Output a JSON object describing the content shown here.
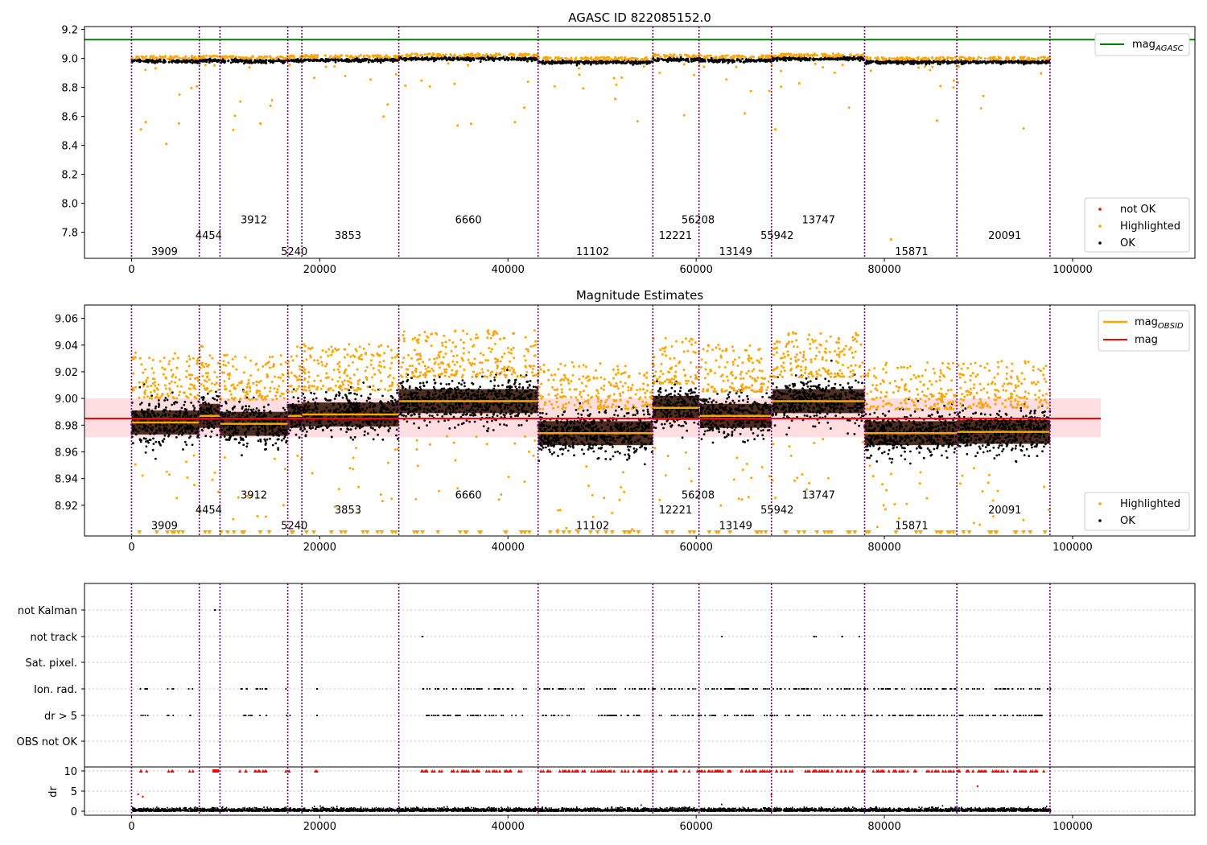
{
  "chart_data": [
    {
      "type": "scatter",
      "title": "AGASC ID 822085152.0",
      "xlim": [
        -5000,
        113000
      ],
      "ylim": [
        7.62,
        9.22
      ],
      "xticks": [
        0,
        20000,
        40000,
        60000,
        80000,
        100000
      ],
      "xtick_labels": [
        "0",
        "20000",
        "40000",
        "60000",
        "80000",
        "100000"
      ],
      "yticks": [
        7.8,
        8.0,
        8.2,
        8.4,
        8.6,
        8.8,
        9.0,
        9.2
      ],
      "ytick_labels": [
        "7.8",
        "8.0",
        "8.2",
        "8.4",
        "8.6",
        "8.8",
        "9.0",
        "9.2"
      ],
      "mag_agasc": 9.13,
      "legend_line": [
        {
          "label": "mag",
          "sub": "AGASC",
          "color": "#008000"
        }
      ],
      "legend_points": [
        {
          "label": "not OK",
          "color": "#ff0000"
        },
        {
          "label": "Highlighted",
          "color": "#ffa500"
        },
        {
          "label": "OK",
          "color": "#000000"
        }
      ],
      "obsid_labels": [
        {
          "text": "3909",
          "x": 3500,
          "y": 7.67
        },
        {
          "text": "4454",
          "x": 8200,
          "y": 7.78
        },
        {
          "text": "3912",
          "x": 13000,
          "y": 7.89
        },
        {
          "text": "5240",
          "x": 17300,
          "y": 7.67
        },
        {
          "text": "3853",
          "x": 23000,
          "y": 7.78
        },
        {
          "text": "6660",
          "x": 35800,
          "y": 7.89
        },
        {
          "text": "11102",
          "x": 49000,
          "y": 7.67
        },
        {
          "text": "12221",
          "x": 57800,
          "y": 7.78
        },
        {
          "text": "56208",
          "x": 60200,
          "y": 7.89
        },
        {
          "text": "13149",
          "x": 64200,
          "y": 7.67
        },
        {
          "text": "55942",
          "x": 68600,
          "y": 7.78
        },
        {
          "text": "13747",
          "x": 73000,
          "y": 7.89
        },
        {
          "text": "15871",
          "x": 82900,
          "y": 7.67
        },
        {
          "text": "20091",
          "x": 92800,
          "y": 7.78
        }
      ]
    },
    {
      "type": "scatter",
      "title": "Magnitude Estimates",
      "xlim": [
        -5000,
        113000
      ],
      "ylim": [
        8.897,
        9.07
      ],
      "xticks": [
        0,
        20000,
        40000,
        60000,
        80000,
        100000
      ],
      "xtick_labels": [
        "0",
        "20000",
        "40000",
        "60000",
        "80000",
        "100000"
      ],
      "yticks": [
        8.92,
        8.94,
        8.96,
        8.98,
        9.0,
        9.02,
        9.04,
        9.06
      ],
      "ytick_labels": [
        "8.92",
        "8.94",
        "8.96",
        "8.98",
        "9.00",
        "9.02",
        "9.04",
        "9.06"
      ],
      "mag_mean": 8.985,
      "mag_band": [
        8.971,
        9.0
      ],
      "mag_band_x": [
        -5000,
        103000
      ],
      "legend_line": [
        {
          "label": "mag",
          "sub": "OBSID",
          "color": "#ffa500"
        },
        {
          "label": "mag",
          "sub": "",
          "color": "#ff0000"
        }
      ],
      "legend_points": [
        {
          "label": "Highlighted",
          "color": "#ffa500"
        },
        {
          "label": "OK",
          "color": "#000000"
        }
      ],
      "obsid_mags": [
        {
          "obsid": "3909",
          "x0": 0,
          "x1": 7200,
          "mag": 8.982
        },
        {
          "obsid": "4454",
          "x0": 7200,
          "x1": 9400,
          "mag": 8.987
        },
        {
          "obsid": "3912",
          "x0": 9400,
          "x1": 16600,
          "mag": 8.981
        },
        {
          "obsid": "5240",
          "x0": 16600,
          "x1": 18100,
          "mag": 8.987
        },
        {
          "obsid": "3853",
          "x0": 18100,
          "x1": 28400,
          "mag": 8.988
        },
        {
          "obsid": "6660",
          "x0": 28400,
          "x1": 43200,
          "mag": 8.998
        },
        {
          "obsid": "11102",
          "x0": 43200,
          "x1": 55400,
          "mag": 8.974
        },
        {
          "obsid": "12221",
          "x0": 55400,
          "x1": 60300,
          "mag": 8.993
        },
        {
          "obsid": "56208",
          "x0": 60300,
          "x1": 60400,
          "mag": 8.993
        },
        {
          "obsid": "13149",
          "x0": 60400,
          "x1": 68000,
          "mag": 8.987
        },
        {
          "obsid": "55942",
          "x0": 68000,
          "x1": 68100,
          "mag": 8.987
        },
        {
          "obsid": "13747",
          "x0": 68100,
          "x1": 77900,
          "mag": 8.998
        },
        {
          "obsid": "15871",
          "x0": 77900,
          "x1": 87700,
          "mag": 8.974
        },
        {
          "obsid": "20091",
          "x0": 87700,
          "x1": 97600,
          "mag": 8.975
        }
      ],
      "obsid_labels": [
        {
          "text": "3909",
          "x": 3500,
          "y": 8.905
        },
        {
          "text": "4454",
          "x": 8200,
          "y": 8.917
        },
        {
          "text": "3912",
          "x": 13000,
          "y": 8.928
        },
        {
          "text": "5240",
          "x": 17300,
          "y": 8.905
        },
        {
          "text": "3853",
          "x": 23000,
          "y": 8.917
        },
        {
          "text": "6660",
          "x": 35800,
          "y": 8.928
        },
        {
          "text": "11102",
          "x": 49000,
          "y": 8.905
        },
        {
          "text": "12221",
          "x": 57800,
          "y": 8.917
        },
        {
          "text": "56208",
          "x": 60200,
          "y": 8.928
        },
        {
          "text": "13149",
          "x": 64200,
          "y": 8.905
        },
        {
          "text": "55942",
          "x": 68600,
          "y": 8.917
        },
        {
          "text": "13747",
          "x": 73000,
          "y": 8.928
        },
        {
          "text": "15871",
          "x": 82900,
          "y": 8.905
        },
        {
          "text": "20091",
          "x": 92800,
          "y": 8.917
        }
      ]
    },
    {
      "type": "scatter",
      "title": "",
      "xlim": [
        -5000,
        113000
      ],
      "flags": [
        "not Kalman",
        "not track",
        "Sat. pixel.",
        "Ion. rad.",
        "dr > 5",
        "OBS not OK"
      ],
      "flag_rows_present": {
        "not Kalman": [
          [
            8600,
            9300
          ]
        ],
        "not track": [
          [
            30800,
            30900
          ],
          [
            62600,
            62700
          ],
          [
            72100,
            72800
          ],
          [
            75300,
            75500
          ],
          [
            77200,
            77300
          ]
        ],
        "Sat. pixel.": [],
        "Ion. rad.": [
          [
            800,
            1700
          ],
          [
            3600,
            4400
          ],
          [
            6000,
            6600
          ],
          [
            11500,
            14500
          ],
          [
            16300,
            16800
          ],
          [
            19500,
            19700
          ],
          [
            30800,
            42000
          ],
          [
            43200,
            97600
          ]
        ],
        "dr > 5": [
          [
            800,
            1700
          ],
          [
            3600,
            4400
          ],
          [
            6000,
            6600
          ],
          [
            11500,
            14500
          ],
          [
            16300,
            16800
          ],
          [
            19500,
            19700
          ],
          [
            30800,
            42000
          ],
          [
            43200,
            97600
          ]
        ],
        "OBS not OK": []
      },
      "dr_ylabel": "dr",
      "dr_yticks": [
        0,
        5,
        10
      ],
      "dr_ytick_labels": [
        "0",
        "5",
        "10"
      ],
      "dr_ylim": [
        -1,
        11
      ],
      "dr_clip": 10,
      "xticks": [
        0,
        20000,
        40000,
        60000,
        80000,
        100000
      ],
      "xtick_labels": [
        "0",
        "20000",
        "40000",
        "60000",
        "80000",
        "100000"
      ]
    }
  ],
  "obsid_boundaries": [
    0,
    7200,
    9400,
    16600,
    18100,
    28400,
    43200,
    55400,
    60300,
    68000,
    77900,
    87700,
    97600
  ],
  "colors": {
    "ok": "#000000",
    "highlighted": "#ffa500",
    "not_ok": "#ff0000",
    "agasc": "#008000",
    "boundary": "#800080",
    "band": "#ffdde0",
    "grid": "#b0b0b0"
  }
}
